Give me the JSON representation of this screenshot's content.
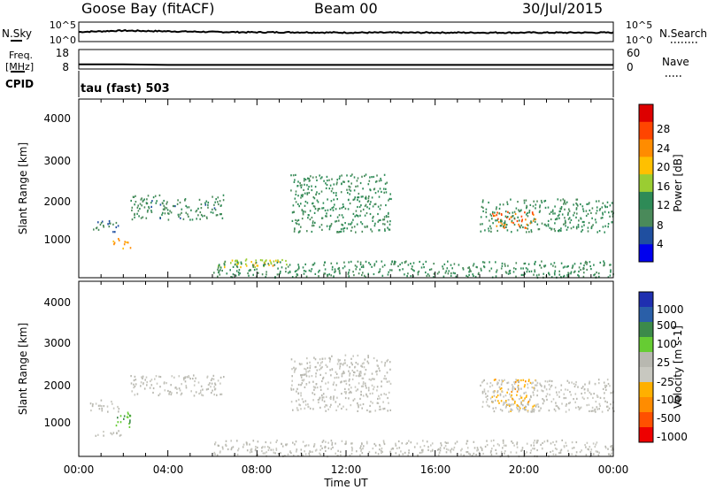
{
  "header": {
    "station": "Goose Bay (fitACF)",
    "beam": "Beam 00",
    "date": "30/Jul/2015"
  },
  "noise_panel": {
    "left_label": "N.Sky",
    "right_label": "N.Search",
    "left_ticks": [
      "10^5",
      "10^0"
    ],
    "right_ticks": [
      "10^5",
      "10^0"
    ]
  },
  "freq_panel": {
    "left_label_1": "Freq.",
    "left_label_2": "[MHz]",
    "right_label": "Nave",
    "left_ticks": [
      "18",
      "8"
    ],
    "right_ticks": [
      "60",
      "0"
    ]
  },
  "cpid_panel": {
    "label": "CPID",
    "value": "tau (fast) 503"
  },
  "x_axis": {
    "title": "Time UT",
    "ticks": [
      "00:00",
      "04:00",
      "08:00",
      "12:00",
      "16:00",
      "20:00",
      "00:00"
    ]
  },
  "power_panel": {
    "ylabel": "Slant Range [km]",
    "yticks": [
      "4000",
      "3000",
      "2000",
      "1000"
    ],
    "colorbar_label": "Power [dB]",
    "colorbar_ticks": [
      "28",
      "24",
      "20",
      "16",
      "12",
      "8",
      "4"
    ],
    "colorbar_colors": [
      "#dd0000",
      "#ff4500",
      "#ff8c00",
      "#ffc000",
      "#9acd32",
      "#2e8b57",
      "#4a8a5a",
      "#1f4fa0",
      "#0000ee"
    ]
  },
  "velocity_panel": {
    "ylabel": "Slant Range [km]",
    "yticks": [
      "4000",
      "3000",
      "2000",
      "1000"
    ],
    "colorbar_label": "Velocity [m s-1]",
    "colorbar_ticks": [
      "1000",
      "500",
      "100",
      "25",
      "-25",
      "-100",
      "-500",
      "-1000"
    ],
    "colorbar_colors": [
      "#1f2fb0",
      "#2a5fa8",
      "#3c8a4a",
      "#66cc33",
      "#b8b8b0",
      "#c8c8c0",
      "#ffb000",
      "#ff8c00",
      "#ff5000",
      "#ee0000"
    ]
  },
  "chart_data": [
    {
      "type": "line",
      "title": "Goose Bay (fitACF)",
      "x_range": [
        "00:00",
        "24:00"
      ],
      "series": [
        {
          "name": "N.Sky",
          "values": [
            2.6,
            3.0,
            2.8,
            2.6,
            2.5,
            2.5,
            2.4,
            2.4,
            2.4,
            2.4,
            2.4,
            2.4,
            2.4
          ]
        }
      ],
      "ylim": [
        "10^0",
        "10^5"
      ]
    },
    {
      "type": "line",
      "series": [
        {
          "name": "Freq.",
          "values": [
            10.5,
            10.5,
            10.2,
            10.2,
            10.2,
            10.2,
            10.2,
            10.2,
            10.2,
            10.2,
            10.2,
            10.2,
            10.2
          ]
        }
      ],
      "ylim": [
        8,
        18
      ]
    },
    {
      "type": "heatmap",
      "quantity": "Power [dB]",
      "x_range_hours": [
        0,
        24
      ],
      "y_range_km": [
        180,
        4500
      ],
      "clim": [
        0,
        30
      ],
      "features": [
        {
          "t": [
            0.5,
            1.8
          ],
          "r": [
            1300,
            1600
          ],
          "value": 6
        },
        {
          "t": [
            1.5,
            2.3
          ],
          "r": [
            900,
            1150
          ],
          "value": 22
        },
        {
          "t": [
            2.3,
            6.5
          ],
          "r": [
            1600,
            2200
          ],
          "value": 8
        },
        {
          "t": [
            6.0,
            9.5
          ],
          "r": [
            450,
            650
          ],
          "value": 16
        },
        {
          "t": [
            7.5,
            9.0
          ],
          "r": [
            480,
            600
          ],
          "value": 20
        },
        {
          "t": [
            9.5,
            14.0
          ],
          "r": [
            1300,
            2700
          ],
          "value": 10
        },
        {
          "t": [
            6.0,
            24.0
          ],
          "r": [
            200,
            600
          ],
          "value": 10
        },
        {
          "t": [
            18.5,
            20.5
          ],
          "r": [
            1400,
            1800
          ],
          "value": 24
        },
        {
          "t": [
            18.0,
            24.0
          ],
          "r": [
            1300,
            2100
          ],
          "value": 10
        }
      ]
    },
    {
      "type": "heatmap",
      "quantity": "Velocity [m s-1]",
      "x_range_hours": [
        0,
        24
      ],
      "y_range_km": [
        180,
        4500
      ],
      "clim": [
        -1000,
        1000
      ],
      "features": [
        {
          "t": [
            0.5,
            1.8
          ],
          "r": [
            1300,
            1600
          ],
          "value": 0
        },
        {
          "t": [
            1.5,
            2.3
          ],
          "r": [
            900,
            1300
          ],
          "value": 400
        },
        {
          "t": [
            0.5,
            2.0
          ],
          "r": [
            700,
            850
          ],
          "value": 0
        },
        {
          "t": [
            2.3,
            6.5
          ],
          "r": [
            1700,
            2200
          ],
          "value": 0
        },
        {
          "t": [
            9.5,
            14.0
          ],
          "r": [
            1300,
            2700
          ],
          "value": 0
        },
        {
          "t": [
            18.5,
            20.5
          ],
          "r": [
            1300,
            2100
          ],
          "value": -300
        },
        {
          "t": [
            18.0,
            24.0
          ],
          "r": [
            1300,
            2100
          ],
          "value": 0
        },
        {
          "t": [
            6.0,
            24.0
          ],
          "r": [
            200,
            600
          ],
          "value": 0
        }
      ]
    }
  ]
}
